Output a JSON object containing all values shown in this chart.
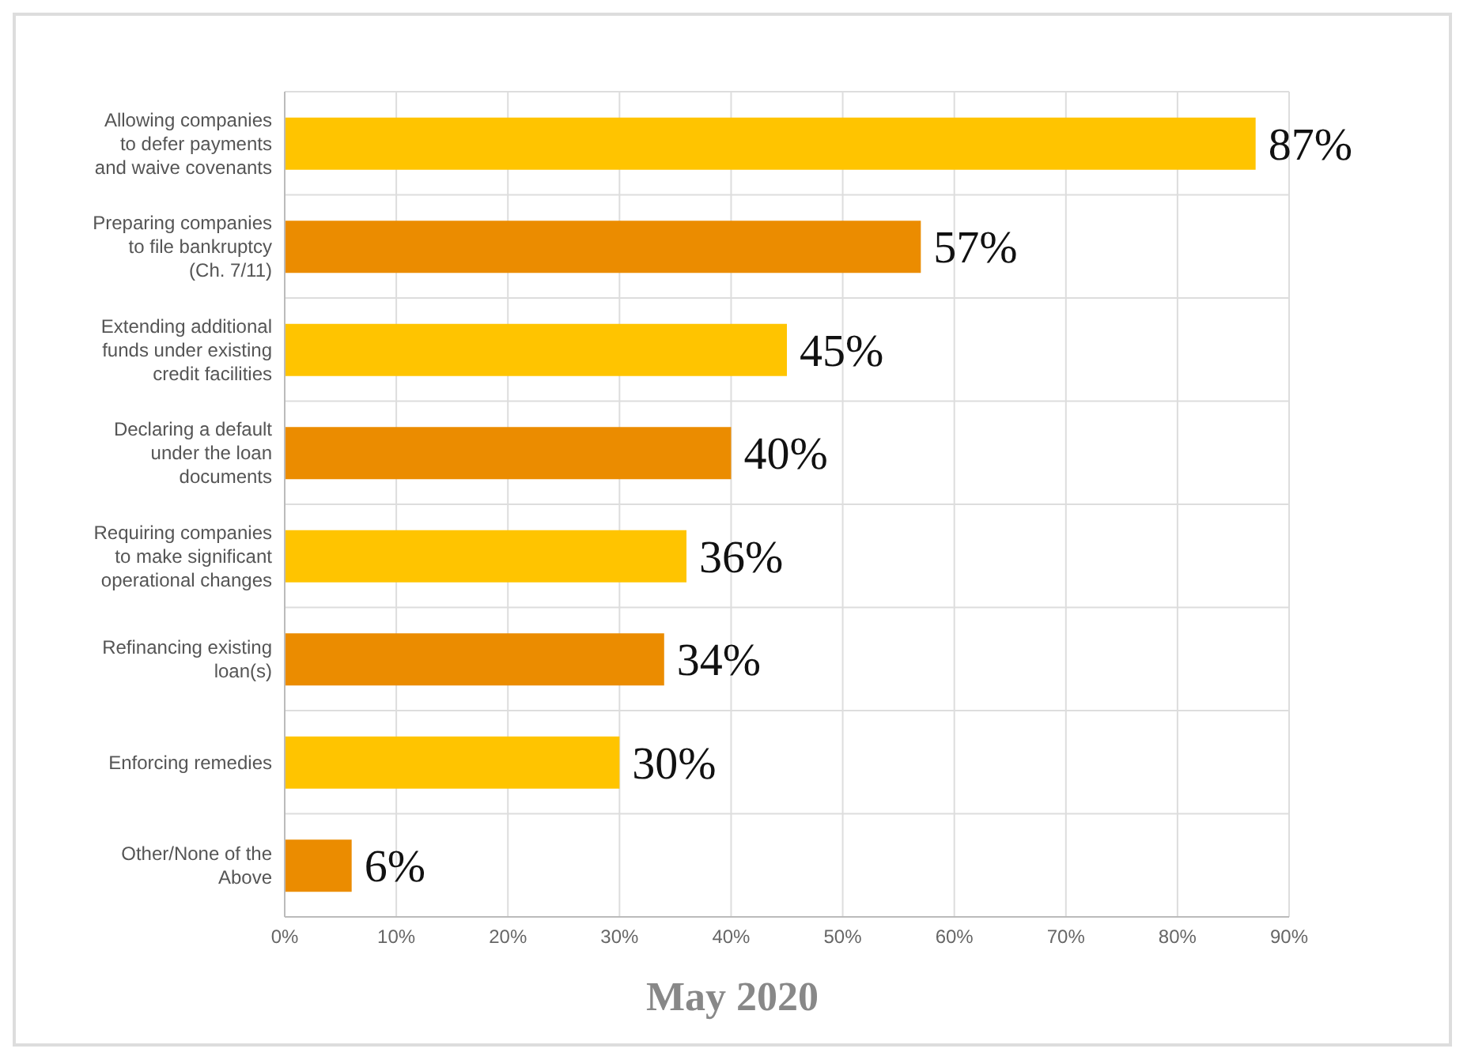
{
  "chart_data": {
    "type": "bar",
    "orientation": "horizontal",
    "title": "May 2020",
    "categories": [
      "Allowing companies to defer payments and waive covenants",
      "Preparing companies to file bankruptcy (Ch. 7/11)",
      "Extending additional funds under existing credit facilities",
      "Declaring a default under the loan documents",
      "Requiring companies to make significant operational changes",
      "Refinancing existing loan(s)",
      "Enforcing remedies",
      "Other/None of the Above"
    ],
    "values": [
      87,
      57,
      45,
      40,
      36,
      34,
      30,
      6
    ],
    "colors": [
      "#ffc400",
      "#eb8c00",
      "#ffc400",
      "#eb8c00",
      "#ffc400",
      "#eb8c00",
      "#ffc400",
      "#eb8c00"
    ],
    "value_labels": [
      "87%",
      "57%",
      "45%",
      "40%",
      "36%",
      "34%",
      "30%",
      "6%"
    ],
    "xlim": [
      0,
      90
    ],
    "xticks": [
      {
        "value": 0,
        "label": "0%"
      },
      {
        "value": 10,
        "label": "10%"
      },
      {
        "value": 20,
        "label": "20%"
      },
      {
        "value": 30,
        "label": "30%"
      },
      {
        "value": 40,
        "label": "40%"
      },
      {
        "value": 50,
        "label": "50%"
      },
      {
        "value": 60,
        "label": "60%"
      },
      {
        "value": 70,
        "label": "70%"
      },
      {
        "value": 80,
        "label": "80%"
      },
      {
        "value": 90,
        "label": "90%"
      }
    ],
    "grid": true
  }
}
